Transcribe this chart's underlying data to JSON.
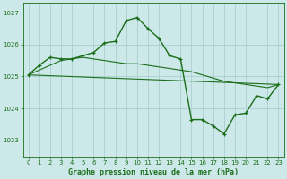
{
  "title": "Graphe pression niveau de la mer (hPa)",
  "bg_color": "#cde8e8",
  "grid_color": "#aad0d0",
  "line_color": "#1a6e1a",
  "xlim": [
    -0.5,
    23.5
  ],
  "ylim": [
    1022.5,
    1027.3
  ],
  "yticks": [
    1023,
    1024,
    1025,
    1026,
    1027
  ],
  "xticks": [
    0,
    1,
    2,
    3,
    4,
    5,
    6,
    7,
    8,
    9,
    10,
    11,
    12,
    13,
    14,
    15,
    16,
    17,
    18,
    19,
    20,
    21,
    22,
    23
  ],
  "series": [
    {
      "x": [
        0,
        1,
        2,
        3,
        4,
        5,
        6,
        7,
        8,
        9,
        10,
        11,
        12,
        13,
        14,
        15,
        16,
        17,
        18,
        19,
        20,
        21,
        22,
        23
      ],
      "y": [
        1025.05,
        1025.35,
        1025.6,
        1025.55,
        1025.55,
        1025.65,
        1025.75,
        1026.05,
        1026.1,
        1026.75,
        1026.85,
        1026.5,
        1026.2,
        1025.65,
        1025.55,
        1023.65,
        1023.65,
        1023.45,
        1023.2,
        1023.8,
        1023.85,
        1024.4,
        1024.3,
        1024.75
      ],
      "marker": true,
      "linewidth": 1.0
    },
    {
      "x": [
        0,
        23
      ],
      "y": [
        1025.05,
        1024.75
      ],
      "marker": false,
      "linewidth": 0.8
    },
    {
      "x": [
        0,
        3,
        4,
        5,
        6,
        7,
        8,
        9,
        10,
        11,
        12,
        13,
        14,
        15,
        16,
        17,
        18,
        19,
        20,
        21,
        22,
        23
      ],
      "y": [
        1025.05,
        1025.5,
        1025.55,
        1025.6,
        1025.55,
        1025.5,
        1025.45,
        1025.4,
        1025.4,
        1025.35,
        1025.3,
        1025.25,
        1025.2,
        1025.15,
        1025.05,
        1024.95,
        1024.85,
        1024.8,
        1024.75,
        1024.7,
        1024.65,
        1024.75
      ],
      "marker": false,
      "linewidth": 0.8
    }
  ]
}
